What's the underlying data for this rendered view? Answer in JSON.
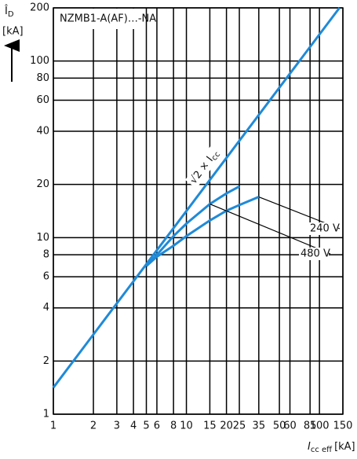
{
  "chart_data": {
    "type": "line",
    "title": "NZMB1-A(AF)…-NA",
    "xlabel": {
      "symbol": "I",
      "subscript": "cc eff",
      "unit": "[kA]"
    },
    "ylabel": {
      "symbol": "Î",
      "subscript": "D",
      "unit": "[kA]"
    },
    "log_x": true,
    "log_y": true,
    "grid": true,
    "xlim": [
      1,
      150
    ],
    "ylim": [
      1,
      200
    ],
    "xticks": [
      1,
      2,
      3,
      4,
      5,
      6,
      8,
      10,
      15,
      20,
      25,
      35,
      50,
      60,
      85,
      100,
      150
    ],
    "yticks": [
      1,
      2,
      4,
      6,
      8,
      10,
      20,
      40,
      60,
      80,
      100,
      200
    ],
    "annotation": {
      "text": "√2 × I",
      "subscript": "cc"
    },
    "series": [
      {
        "name": "√2 × Icc",
        "color": "#1f8ad8",
        "x": [
          1,
          141.4
        ],
        "values": [
          1.414,
          200
        ]
      },
      {
        "name": "480 V",
        "color": "#1f8ad8",
        "x": [
          5,
          6,
          8,
          10,
          15,
          20,
          25
        ],
        "values": [
          6.9,
          8,
          10.2,
          12,
          15.5,
          17.8,
          19.5
        ]
      },
      {
        "name": "240 V",
        "color": "#1f8ad8",
        "x": [
          5,
          6,
          8,
          10,
          15,
          20,
          25,
          35
        ],
        "values": [
          6.9,
          7.8,
          9,
          10.2,
          12.5,
          14.2,
          15.3,
          17
        ]
      }
    ]
  }
}
